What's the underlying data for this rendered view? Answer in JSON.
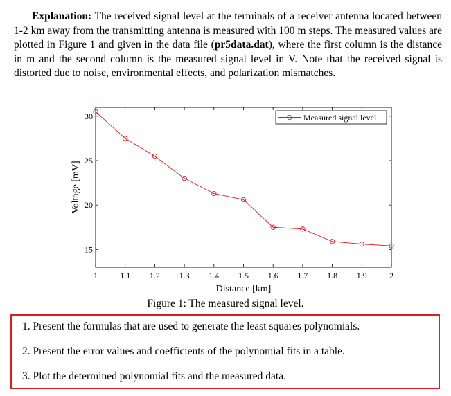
{
  "explanation": {
    "heading": "Explanation:",
    "text_before_file": "The received signal level at the terminals of a receiver antenna located between 1-2 km away from the transmitting antenna is measured with 100 m steps. The measured values are plotted in Figure 1 and given in the data file (",
    "file_name": "pr5data.dat",
    "text_after_file": "), where the first column is the distance in m and the second column is the measured signal level in V. Note that the received signal is distorted due to noise, environmental effects, and polarization mismatches."
  },
  "figure_caption": "Figure 1: The measured signal level.",
  "chart_data": {
    "type": "line",
    "xlabel": "Distance [km]",
    "ylabel": "Voltage [mV]",
    "xlim": [
      1,
      2
    ],
    "ylim": [
      13,
      31
    ],
    "xticks": [
      "1",
      "1.1",
      "1.2",
      "1.3",
      "1.4",
      "1.5",
      "1.6",
      "1.7",
      "1.8",
      "1.9",
      "2"
    ],
    "yticks": [
      "15",
      "20",
      "25",
      "30"
    ],
    "series": [
      {
        "name": "Measured signal level",
        "color": "#e8141b",
        "marker": "circle",
        "x": [
          1.0,
          1.1,
          1.2,
          1.3,
          1.4,
          1.5,
          1.6,
          1.7,
          1.8,
          1.9,
          2.0
        ],
        "y": [
          30.5,
          27.5,
          25.5,
          23.0,
          21.3,
          20.6,
          17.5,
          17.3,
          15.9,
          15.6,
          15.4
        ]
      }
    ],
    "legend_position": "top-right",
    "grid": false
  },
  "tasks": [
    "1. Present the formulas that are used to generate the least squares polynomials.",
    "2. Present the error values and coefficients of the polynomial fits in a table.",
    "3. Plot the determined polynomial fits and the measured data."
  ],
  "highlight_color": "#d9201f"
}
